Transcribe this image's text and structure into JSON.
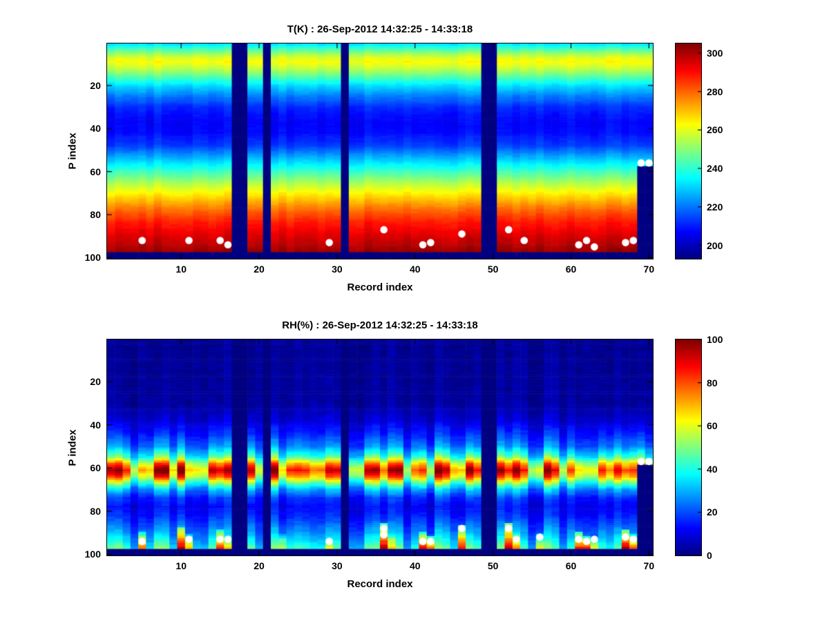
{
  "figure": {
    "background": "#ffffff",
    "marker_color": "#ffffff"
  },
  "chart_data": [
    {
      "type": "heatmap",
      "title": "T(K) : 26-Sep-2012 14:32:25 - 14:33:18",
      "xlabel": "Record index",
      "ylabel": "P index",
      "x_range": [
        1,
        70
      ],
      "y_range": [
        1,
        100
      ],
      "y_axis_reversed": true,
      "x_ticks": [
        10,
        20,
        30,
        40,
        50,
        60,
        70
      ],
      "y_ticks": [
        20,
        40,
        60,
        80,
        100
      ],
      "colormap": "jet",
      "clim": [
        193,
        305
      ],
      "colorbar_ticks": [
        200,
        220,
        240,
        260,
        280,
        300
      ],
      "profile": {
        "p": [
          1,
          4,
          7,
          9,
          12,
          16,
          20,
          25,
          30,
          36,
          42,
          48,
          54,
          60,
          66,
          72,
          78,
          84,
          90,
          95,
          97
        ],
        "value": [
          233,
          247,
          259,
          263,
          257,
          245,
          232,
          221,
          212,
          207,
          208,
          214,
          228,
          242,
          256,
          268,
          280,
          289,
          295,
          300,
          302
        ]
      },
      "noise": {
        "column_add": 2.2,
        "cell_add": 0.9,
        "column_gain": 0
      },
      "missing_columns": [
        17,
        18,
        21,
        31,
        49,
        50
      ],
      "partial_missing": {
        "columns": [
          69,
          70
        ],
        "below_p": 58
      },
      "missing_bottom_rows": 3,
      "spots": [],
      "markers": [
        [
          5,
          92
        ],
        [
          11,
          92
        ],
        [
          15,
          92
        ],
        [
          16,
          94
        ],
        [
          29,
          93
        ],
        [
          36,
          87
        ],
        [
          41,
          94
        ],
        [
          42,
          93
        ],
        [
          46,
          89
        ],
        [
          52,
          87
        ],
        [
          54,
          92
        ],
        [
          61,
          94
        ],
        [
          62,
          92
        ],
        [
          63,
          95
        ],
        [
          67,
          93
        ],
        [
          68,
          92
        ],
        [
          69,
          56
        ],
        [
          70,
          56
        ]
      ]
    },
    {
      "type": "heatmap",
      "title": "RH(%) : 26-Sep-2012 14:32:25 - 14:33:18",
      "xlabel": "Record index",
      "ylabel": "P index",
      "x_range": [
        1,
        70
      ],
      "y_range": [
        1,
        100
      ],
      "y_axis_reversed": true,
      "x_ticks": [
        10,
        20,
        30,
        40,
        50,
        60,
        70
      ],
      "y_ticks": [
        20,
        40,
        60,
        80,
        100
      ],
      "colormap": "jet",
      "clim": [
        0,
        100
      ],
      "colorbar_ticks": [
        0,
        20,
        40,
        60,
        80,
        100
      ],
      "profile": {
        "p": [
          1,
          30,
          38,
          44,
          50,
          55,
          58,
          61,
          64,
          67,
          70,
          74,
          78,
          82,
          86,
          90,
          94,
          97
        ],
        "value": [
          2,
          3,
          8,
          15,
          24,
          42,
          65,
          80,
          68,
          45,
          28,
          16,
          12,
          15,
          20,
          26,
          33,
          40
        ]
      },
      "noise": {
        "column_add": 1.5,
        "cell_add": 1.5,
        "column_gain": 0.32
      },
      "missing_columns": [
        17,
        18,
        21,
        31,
        49,
        50
      ],
      "partial_missing": {
        "columns": [
          69,
          70
        ],
        "below_p": 59
      },
      "missing_bottom_rows": 3,
      "spots": [
        [
          5,
          90,
          97,
          78
        ],
        [
          10,
          88,
          97,
          95
        ],
        [
          11,
          91,
          97,
          70
        ],
        [
          15,
          89,
          97,
          82
        ],
        [
          16,
          92,
          97,
          66
        ],
        [
          23,
          91,
          97,
          58
        ],
        [
          29,
          92,
          97,
          62
        ],
        [
          36,
          86,
          97,
          92
        ],
        [
          37,
          90,
          97,
          70
        ],
        [
          41,
          90,
          97,
          86
        ],
        [
          42,
          92,
          97,
          76
        ],
        [
          46,
          87,
          97,
          82
        ],
        [
          52,
          86,
          97,
          92
        ],
        [
          53,
          90,
          97,
          72
        ],
        [
          56,
          91,
          97,
          62
        ],
        [
          61,
          90,
          97,
          82
        ],
        [
          62,
          92,
          97,
          86
        ],
        [
          63,
          93,
          97,
          62
        ],
        [
          67,
          89,
          97,
          96
        ],
        [
          68,
          91,
          97,
          76
        ]
      ],
      "markers": [
        [
          5,
          94
        ],
        [
          11,
          93
        ],
        [
          15,
          93
        ],
        [
          16,
          93
        ],
        [
          29,
          94
        ],
        [
          36,
          88
        ],
        [
          36,
          91
        ],
        [
          41,
          94
        ],
        [
          42,
          94
        ],
        [
          46,
          88
        ],
        [
          52,
          88
        ],
        [
          53,
          93
        ],
        [
          56,
          92
        ],
        [
          61,
          93
        ],
        [
          62,
          94
        ],
        [
          63,
          93
        ],
        [
          67,
          92
        ],
        [
          68,
          93
        ],
        [
          69,
          57
        ],
        [
          70,
          57
        ]
      ]
    }
  ]
}
